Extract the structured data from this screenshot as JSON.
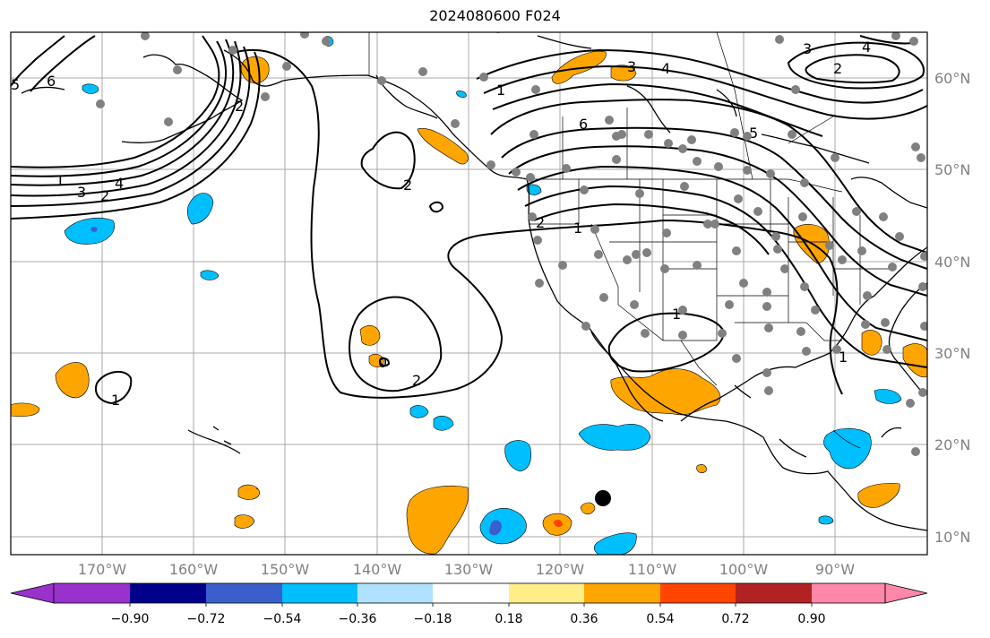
{
  "title": "2024080600 F024",
  "lat_labels": [
    "60°N",
    "50°N",
    "40°N",
    "30°N",
    "20°N",
    "10°N"
  ],
  "lon_labels": [
    "170°W",
    "160°W",
    "150°W",
    "140°W",
    "130°W",
    "120°W",
    "110°W",
    "100°W",
    "90°W"
  ],
  "colorbar": {
    "ticks": [
      "−0.90",
      "−0.72",
      "−0.54",
      "−0.36",
      "−0.18",
      "0.18",
      "0.36",
      "0.54",
      "0.72",
      "0.90"
    ],
    "colors": [
      "#9932cc",
      "#00008b",
      "#3a5fcd",
      "#00bfff",
      "#b0e2ff",
      "#ffffff",
      "#ffee88",
      "#ffa500",
      "#ff4500",
      "#b22222",
      "#ff88aa"
    ]
  },
  "contour_labels": [
    "5",
    "6",
    "4",
    "3",
    "2",
    "1",
    "2",
    "1",
    "4",
    "3",
    "6",
    "5",
    "2",
    "1",
    "1",
    "2",
    "1",
    "2",
    "0",
    "1",
    "3",
    "4",
    "2"
  ]
}
